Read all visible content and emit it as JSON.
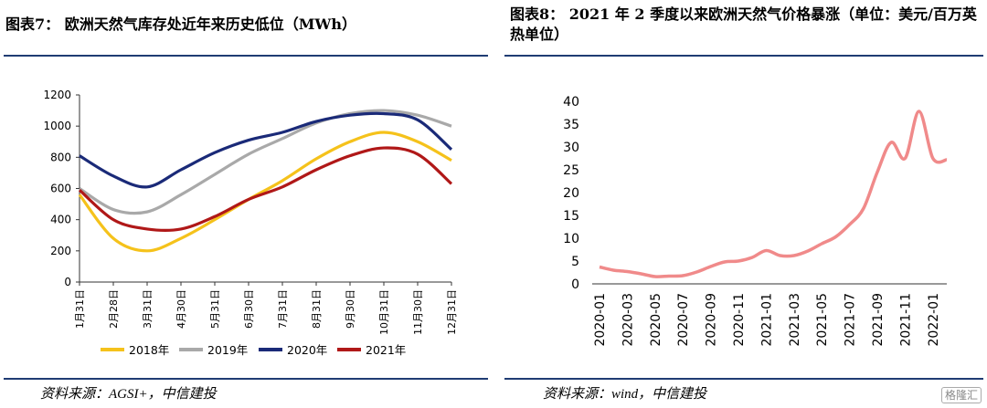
{
  "titles": {
    "left": "图表7： 欧洲天然气库存处近年来历史低位（MWh）",
    "right": "图表8： 2021 年 2 季度以来欧洲天然气价格暴涨（单位：美元/百万英热单位）"
  },
  "sources": {
    "left": "资料来源：AGSI+，中信建投",
    "right": "资料来源：wind，中信建投"
  },
  "watermark": "格隆汇",
  "colors": {
    "rule": "#1f3c73"
  },
  "chart_data": [
    {
      "type": "line",
      "title": "",
      "xlabel": "",
      "ylabel": "",
      "ylim": [
        0,
        1200
      ],
      "yticks": [
        0,
        200,
        400,
        600,
        800,
        1000,
        1200
      ],
      "categories": [
        "1月31日",
        "2月28日",
        "3月31日",
        "4月30日",
        "5月31日",
        "6月30日",
        "7月31日",
        "8月31日",
        "9月30日",
        "10月31日",
        "11月30日",
        "12月31日"
      ],
      "legend_position": "bottom",
      "grid": false,
      "series": [
        {
          "name": "2018年",
          "color": "#f5c21b",
          "values": [
            560,
            280,
            200,
            280,
            400,
            530,
            650,
            790,
            900,
            960,
            900,
            780
          ]
        },
        {
          "name": "2019年",
          "color": "#a9a9a9",
          "values": [
            600,
            465,
            450,
            560,
            690,
            820,
            920,
            1020,
            1080,
            1100,
            1070,
            1000
          ]
        },
        {
          "name": "2020年",
          "color": "#1a2a78",
          "values": [
            810,
            680,
            610,
            720,
            830,
            910,
            960,
            1030,
            1070,
            1080,
            1040,
            850
          ]
        },
        {
          "name": "2021年",
          "color": "#b01818",
          "values": [
            590,
            400,
            340,
            340,
            420,
            530,
            610,
            720,
            810,
            860,
            820,
            630
          ]
        }
      ]
    },
    {
      "type": "line",
      "title": "",
      "xlabel": "",
      "ylabel": "",
      "ylim": [
        0,
        40
      ],
      "yticks": [
        0,
        5,
        10,
        15,
        20,
        25,
        30,
        35,
        40
      ],
      "x": [
        "2020-01",
        "2020-02",
        "2020-03",
        "2020-04",
        "2020-05",
        "2020-06",
        "2020-07",
        "2020-08",
        "2020-09",
        "2020-10",
        "2020-11",
        "2020-12",
        "2021-01",
        "2021-02",
        "2021-03",
        "2021-04",
        "2021-05",
        "2021-06",
        "2021-07",
        "2021-08",
        "2021-09",
        "2021-10",
        "2021-11",
        "2021-12",
        "2022-01",
        "2022-02"
      ],
      "xticks": [
        "2020-01",
        "2020-03",
        "2020-05",
        "2020-07",
        "2020-09",
        "2020-11",
        "2021-01",
        "2021-03",
        "2021-05",
        "2021-07",
        "2021-09",
        "2021-11",
        "2022-01"
      ],
      "grid": false,
      "series": [
        {
          "color": "#f08a8a",
          "values": [
            3.7,
            3.0,
            2.7,
            2.2,
            1.6,
            1.7,
            1.8,
            2.6,
            3.8,
            4.8,
            5.0,
            5.8,
            7.3,
            6.2,
            6.2,
            7.2,
            8.8,
            10.3,
            13.0,
            16.5,
            24.5,
            31.0,
            27.5,
            37.8,
            27.5,
            27.2
          ]
        }
      ]
    }
  ]
}
